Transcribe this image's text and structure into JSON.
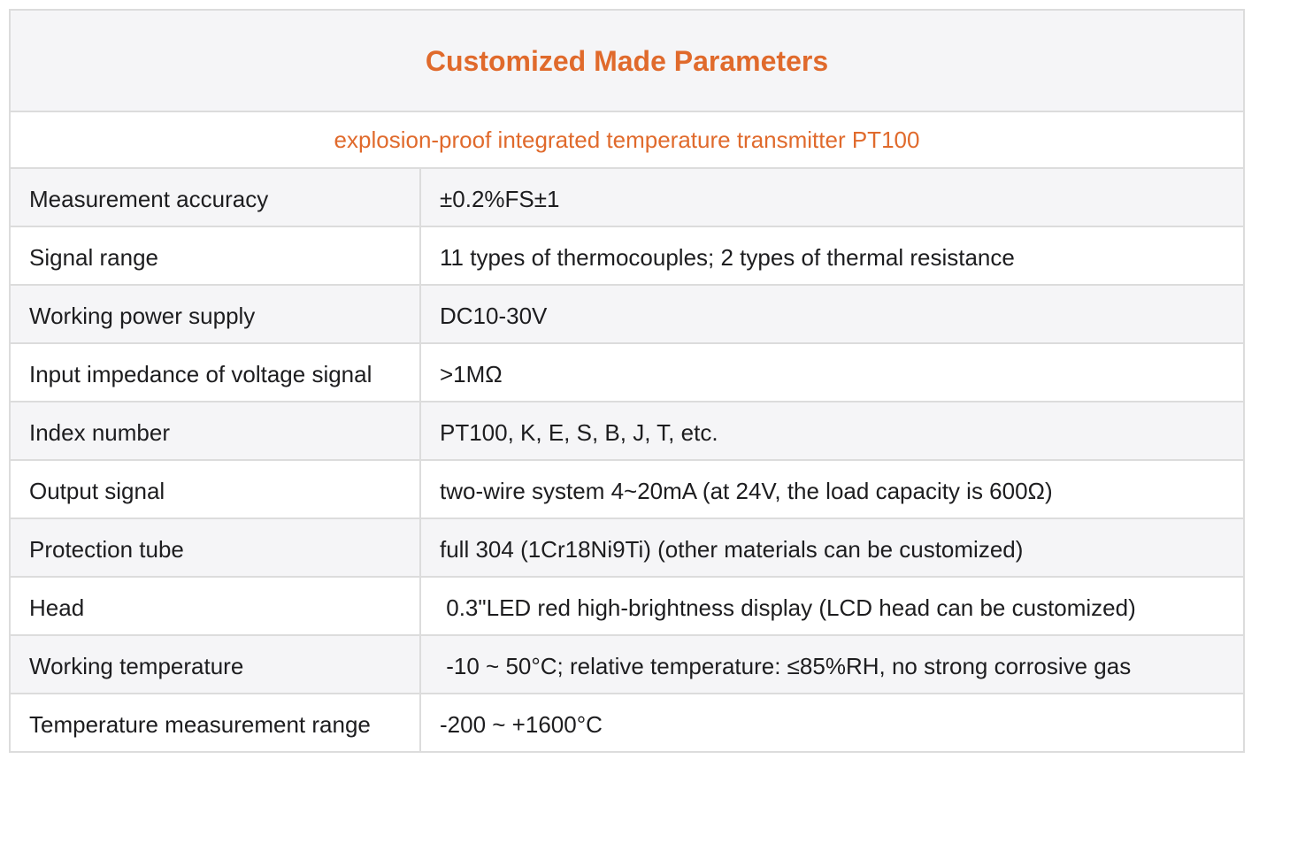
{
  "header": {
    "title": "Customized Made Parameters",
    "subtitle": "explosion-proof integrated temperature transmitter PT100"
  },
  "table": {
    "rows": [
      [
        "Measurement accuracy",
        "±0.2%FS±1"
      ],
      [
        "Signal range",
        "11 types of thermocouples; 2 types of thermal resistance"
      ],
      [
        "Working power supply",
        "DC10-30V"
      ],
      [
        "Input impedance of voltage signal",
        ">1MΩ"
      ],
      [
        "Index number",
        "PT100, K, E, S, B, J, T, etc."
      ],
      [
        "Output signal",
        "two-wire system 4~20mA (at 24V, the load capacity is 600Ω)"
      ],
      [
        "Protection tube",
        "full 304 (1Cr18Ni9Ti) (other materials can be customized)"
      ],
      [
        "Head",
        " 0.3\"LED red high-brightness display (LCD head can be customized)"
      ],
      [
        "Working temperature",
        " -10 ~ 50°C; relative temperature: ≤85%RH, no strong corrosive gas"
      ],
      [
        "Temperature measurement range",
        "-200 ~ +1600°C"
      ]
    ]
  }
}
